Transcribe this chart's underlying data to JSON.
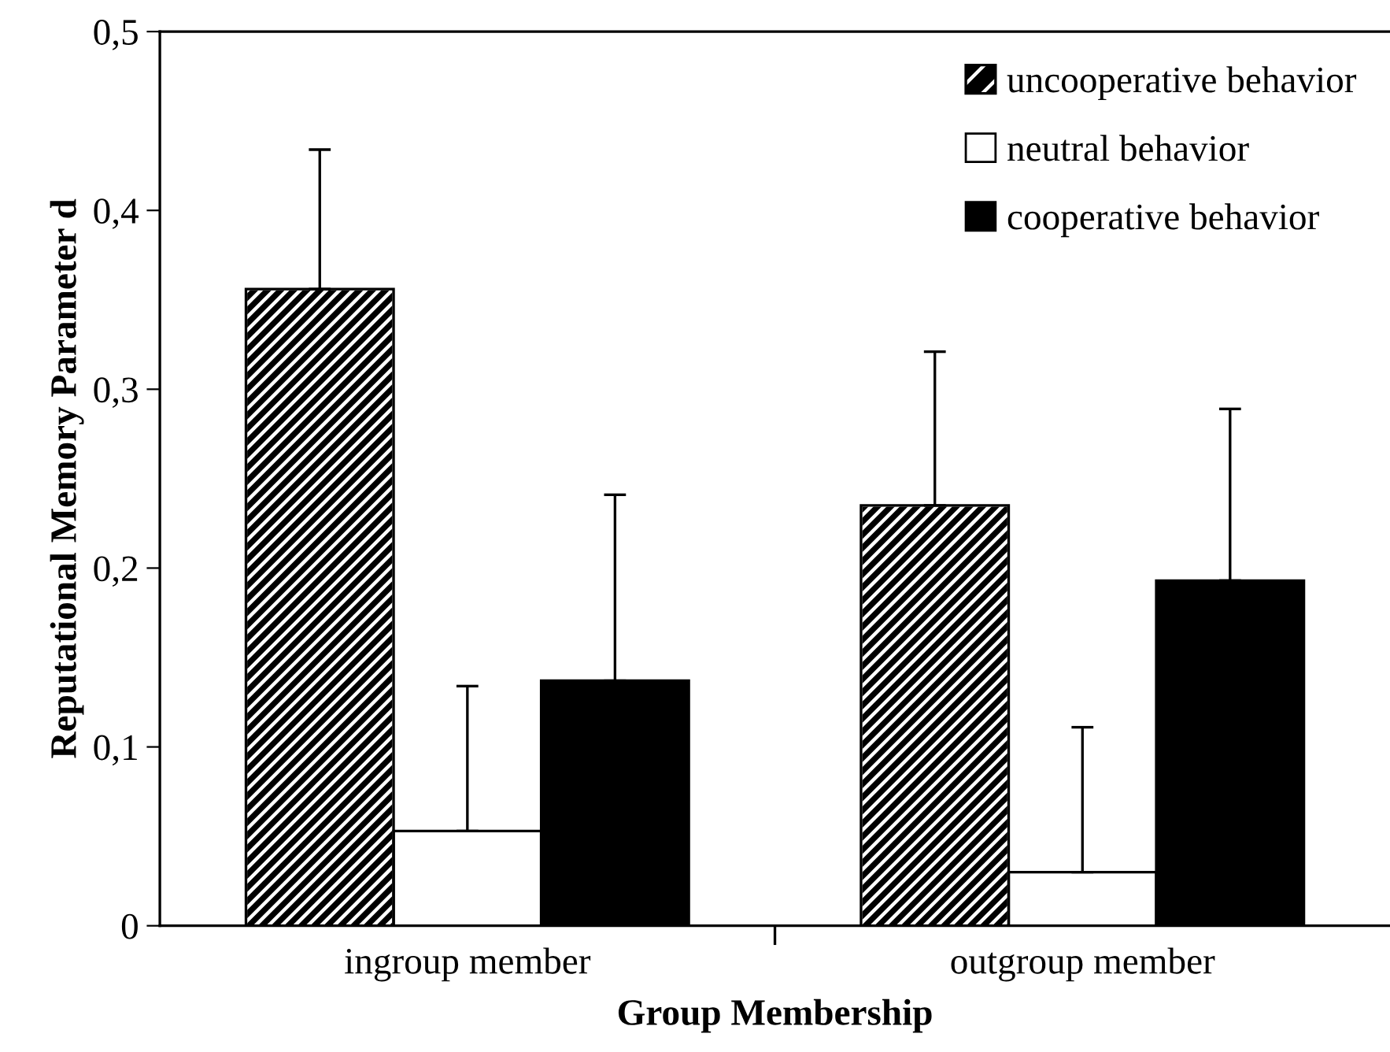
{
  "chart_data": {
    "type": "bar",
    "xlabel": "Group Membership",
    "ylabel": "Reputational Memory Parameter d",
    "categories": [
      "ingroup member",
      "outgroup member"
    ],
    "series": [
      {
        "name": "uncooperative behavior",
        "color": "#000000",
        "values": [
          0.356,
          0.235
        ],
        "errors": [
          [
            0.356,
            0.434
          ],
          [
            0.235,
            0.321
          ]
        ]
      },
      {
        "name": "neutral behavior",
        "color": "#ffffff",
        "values": [
          0.053,
          0.03
        ],
        "errors": [
          [
            0.053,
            0.134
          ],
          [
            0.03,
            0.111
          ]
        ]
      },
      {
        "name": "cooperative behavior",
        "color": "#000000",
        "values": [
          0.137,
          0.193
        ],
        "errors": [
          [
            0.137,
            0.241
          ],
          [
            0.193,
            0.289
          ]
        ]
      }
    ],
    "ylim": [
      0,
      0.5
    ],
    "yticks": [
      0,
      {
        "value": 0.1,
        "label": "0,1"
      },
      {
        "value": 0.2,
        "label": "0,2"
      },
      {
        "value": 0.3,
        "label": "0,3"
      },
      {
        "value": 0.4,
        "label": "0,4"
      },
      {
        "value": 0.5,
        "label": "0,5"
      }
    ],
    "legend": "top right",
    "grid": false
  }
}
